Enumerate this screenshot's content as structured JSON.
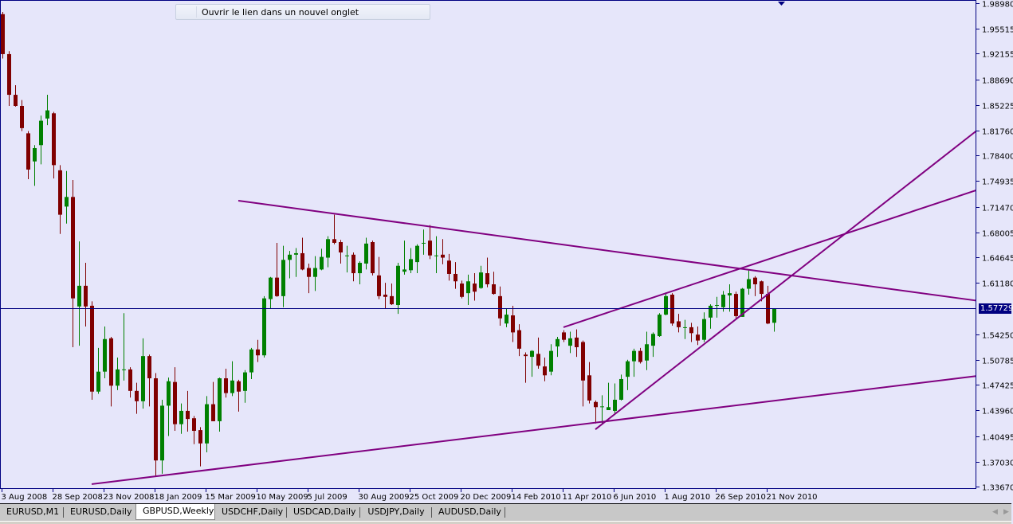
{
  "chart_data": {
    "type": "candlestick",
    "symbol_tab": "GBPUSD,Weekly",
    "ylim": [
      1.3367,
      1.9898
    ],
    "y_ticks": [
      "1.98980",
      "1.95515",
      "1.92155",
      "1.88690",
      "1.85225",
      "1.81760",
      "1.78400",
      "1.74935",
      "1.71470",
      "1.68005",
      "1.64645",
      "1.61180",
      "1.57729",
      "1.54250",
      "1.50785",
      "1.47425",
      "1.43960",
      "1.40495",
      "1.37030",
      "1.33670"
    ],
    "x_ticks": [
      "3 Aug 2008",
      "28 Sep 2008",
      "23 Nov 2008",
      "18 Jan 2009",
      "15 Mar 2009",
      "10 May 2009",
      "5 Jul 2009",
      "30 Aug 2009",
      "25 Oct 2009",
      "20 Dec 2009",
      "14 Feb 2010",
      "11 Apr 2010",
      "6 Jun 2010",
      "1 Aug 2010",
      "26 Sep 2010",
      "21 Nov 2010"
    ],
    "current_price": "1.57729",
    "grid": false,
    "colors": {
      "background": "#E6E6FA",
      "bull": "#008000",
      "bear": "#800000",
      "trendline": "#800080",
      "axis": "#000080",
      "price_line": "#000080"
    },
    "candle_fields": [
      "date",
      "open",
      "high",
      "low",
      "close"
    ],
    "candles": [
      [
        "2008-08-03",
        1.975,
        1.978,
        1.915,
        1.921
      ],
      [
        "2008-08-10",
        1.921,
        1.925,
        1.851,
        1.866
      ],
      [
        "2008-08-17",
        1.866,
        1.879,
        1.85,
        1.851
      ],
      [
        "2008-08-24",
        1.851,
        1.859,
        1.817,
        1.821
      ],
      [
        "2008-08-31",
        1.814,
        1.817,
        1.752,
        1.765
      ],
      [
        "2008-09-07",
        1.776,
        1.798,
        1.743,
        1.794
      ],
      [
        "2008-09-14",
        1.798,
        1.838,
        1.772,
        1.831
      ],
      [
        "2008-09-21",
        1.834,
        1.866,
        1.825,
        1.845
      ],
      [
        "2008-09-28",
        1.841,
        1.843,
        1.753,
        1.771
      ],
      [
        "2008-10-05",
        1.764,
        1.771,
        1.678,
        1.704
      ],
      [
        "2008-10-12",
        1.715,
        1.763,
        1.692,
        1.728
      ],
      [
        "2008-10-19",
        1.728,
        1.751,
        1.525,
        1.591
      ],
      [
        "2008-10-26",
        1.58,
        1.668,
        1.527,
        1.608
      ],
      [
        "2008-11-02",
        1.608,
        1.639,
        1.553,
        1.58
      ],
      [
        "2008-11-09",
        1.581,
        1.587,
        1.454,
        1.465
      ],
      [
        "2008-11-16",
        1.465,
        1.524,
        1.462,
        1.492
      ],
      [
        "2008-11-23",
        1.492,
        1.553,
        1.483,
        1.536
      ],
      [
        "2008-11-30",
        1.537,
        1.539,
        1.445,
        1.473
      ],
      [
        "2008-12-07",
        1.473,
        1.511,
        1.467,
        1.495
      ],
      [
        "2008-12-14",
        1.495,
        1.571,
        1.48,
        1.495
      ],
      [
        "2008-12-21",
        1.495,
        1.498,
        1.457,
        1.466
      ],
      [
        "2008-12-28",
        1.466,
        1.477,
        1.435,
        1.452
      ],
      [
        "2009-01-04",
        1.452,
        1.537,
        1.442,
        1.513
      ],
      [
        "2009-01-11",
        1.513,
        1.515,
        1.445,
        1.483
      ],
      [
        "2009-01-18",
        1.483,
        1.49,
        1.35,
        1.372
      ],
      [
        "2009-01-25",
        1.372,
        1.454,
        1.354,
        1.446
      ],
      [
        "2009-02-01",
        1.446,
        1.484,
        1.405,
        1.479
      ],
      [
        "2009-02-08",
        1.478,
        1.498,
        1.412,
        1.421
      ],
      [
        "2009-02-15",
        1.421,
        1.449,
        1.408,
        1.439
      ],
      [
        "2009-02-22",
        1.439,
        1.466,
        1.411,
        1.428
      ],
      [
        "2009-03-01",
        1.429,
        1.432,
        1.394,
        1.412
      ],
      [
        "2009-03-08",
        1.413,
        1.417,
        1.364,
        1.395
      ],
      [
        "2009-03-15",
        1.395,
        1.459,
        1.383,
        1.448
      ],
      [
        "2009-03-22",
        1.448,
        1.478,
        1.425,
        1.425
      ],
      [
        "2009-03-29",
        1.425,
        1.484,
        1.411,
        1.483
      ],
      [
        "2009-04-05",
        1.483,
        1.496,
        1.457,
        1.463
      ],
      [
        "2009-04-12",
        1.463,
        1.506,
        1.459,
        1.48
      ],
      [
        "2009-04-19",
        1.479,
        1.481,
        1.438,
        1.465
      ],
      [
        "2009-04-26",
        1.466,
        1.494,
        1.45,
        1.491
      ],
      [
        "2009-05-03",
        1.491,
        1.524,
        1.482,
        1.522
      ],
      [
        "2009-05-10",
        1.522,
        1.535,
        1.505,
        1.514
      ],
      [
        "2009-05-17",
        1.514,
        1.594,
        1.511,
        1.591
      ],
      [
        "2009-05-24",
        1.59,
        1.62,
        1.577,
        1.619
      ],
      [
        "2009-05-31",
        1.619,
        1.666,
        1.593,
        1.594
      ],
      [
        "2009-06-07",
        1.594,
        1.662,
        1.579,
        1.643
      ],
      [
        "2009-06-14",
        1.643,
        1.655,
        1.618,
        1.65
      ],
      [
        "2009-06-21",
        1.65,
        1.659,
        1.62,
        1.652
      ],
      [
        "2009-06-28",
        1.652,
        1.673,
        1.629,
        1.63
      ],
      [
        "2009-07-05",
        1.632,
        1.638,
        1.598,
        1.62
      ],
      [
        "2009-07-12",
        1.62,
        1.648,
        1.601,
        1.632
      ],
      [
        "2009-07-19",
        1.63,
        1.658,
        1.629,
        1.647
      ],
      [
        "2009-07-26",
        1.646,
        1.675,
        1.633,
        1.671
      ],
      [
        "2009-08-02",
        1.671,
        1.704,
        1.664,
        1.666
      ],
      [
        "2009-08-09",
        1.667,
        1.67,
        1.638,
        1.653
      ],
      [
        "2009-08-16",
        1.649,
        1.662,
        1.626,
        1.649
      ],
      [
        "2009-08-23",
        1.65,
        1.653,
        1.614,
        1.625
      ],
      [
        "2009-08-30",
        1.625,
        1.641,
        1.61,
        1.639
      ],
      [
        "2009-09-06",
        1.638,
        1.673,
        1.63,
        1.665
      ],
      [
        "2009-09-13",
        1.667,
        1.669,
        1.622,
        1.625
      ],
      [
        "2009-09-20",
        1.622,
        1.647,
        1.59,
        1.594
      ],
      [
        "2009-09-27",
        1.596,
        1.612,
        1.577,
        1.593
      ],
      [
        "2009-10-04",
        1.594,
        1.611,
        1.582,
        1.583
      ],
      [
        "2009-10-11",
        1.582,
        1.639,
        1.57,
        1.635
      ],
      [
        "2009-10-18",
        1.627,
        1.669,
        1.623,
        1.63
      ],
      [
        "2009-10-25",
        1.629,
        1.659,
        1.625,
        1.644
      ],
      [
        "2009-11-01",
        1.64,
        1.664,
        1.625,
        1.662
      ],
      [
        "2009-11-08",
        1.666,
        1.684,
        1.65,
        1.666
      ],
      [
        "2009-11-15",
        1.669,
        1.69,
        1.644,
        1.649
      ],
      [
        "2009-11-22",
        1.649,
        1.675,
        1.625,
        1.649
      ],
      [
        "2009-11-29",
        1.65,
        1.671,
        1.637,
        1.646
      ],
      [
        "2009-12-06",
        1.642,
        1.651,
        1.615,
        1.624
      ],
      [
        "2009-12-13",
        1.624,
        1.64,
        1.604,
        1.614
      ],
      [
        "2009-12-20",
        1.611,
        1.615,
        1.591,
        1.593
      ],
      [
        "2009-12-27",
        1.598,
        1.623,
        1.582,
        1.614
      ],
      [
        "2010-01-03",
        1.611,
        1.625,
        1.588,
        1.6
      ],
      [
        "2010-01-10",
        1.605,
        1.635,
        1.604,
        1.626
      ],
      [
        "2010-01-17",
        1.625,
        1.646,
        1.606,
        1.61
      ],
      [
        "2010-01-24",
        1.61,
        1.627,
        1.596,
        1.597
      ],
      [
        "2010-01-31",
        1.594,
        1.607,
        1.554,
        1.564
      ],
      [
        "2010-02-07",
        1.557,
        1.577,
        1.552,
        1.569
      ],
      [
        "2010-02-14",
        1.568,
        1.581,
        1.532,
        1.545
      ],
      [
        "2010-02-21",
        1.548,
        1.556,
        1.513,
        1.523
      ],
      [
        "2010-02-28",
        1.515,
        1.518,
        1.477,
        1.513
      ],
      [
        "2010-03-07",
        1.512,
        1.521,
        1.485,
        1.52
      ],
      [
        "2010-03-14",
        1.516,
        1.538,
        1.496,
        1.5
      ],
      [
        "2010-03-21",
        1.499,
        1.511,
        1.479,
        1.487
      ],
      [
        "2010-03-28",
        1.492,
        1.529,
        1.487,
        1.52
      ],
      [
        "2010-04-04",
        1.526,
        1.539,
        1.512,
        1.536
      ],
      [
        "2010-04-11",
        1.545,
        1.548,
        1.532,
        1.535
      ],
      [
        "2010-04-18",
        1.527,
        1.546,
        1.517,
        1.537
      ],
      [
        "2010-04-25",
        1.538,
        1.549,
        1.512,
        1.525
      ],
      [
        "2010-05-02",
        1.532,
        1.534,
        1.445,
        1.48
      ],
      [
        "2010-05-09",
        1.487,
        1.505,
        1.449,
        1.453
      ],
      [
        "2010-05-16",
        1.451,
        1.453,
        1.422,
        1.444
      ],
      [
        "2010-05-23",
        1.445,
        1.46,
        1.422,
        1.445
      ],
      [
        "2010-05-30",
        1.44,
        1.477,
        1.44,
        1.444
      ],
      [
        "2010-06-06",
        1.439,
        1.476,
        1.435,
        1.454
      ],
      [
        "2010-06-13",
        1.454,
        1.488,
        1.453,
        1.482
      ],
      [
        "2010-06-20",
        1.485,
        1.508,
        1.467,
        1.506
      ],
      [
        "2010-06-27",
        1.506,
        1.523,
        1.485,
        1.52
      ],
      [
        "2010-07-04",
        1.52,
        1.524,
        1.503,
        1.505
      ],
      [
        "2010-07-11",
        1.507,
        1.546,
        1.494,
        1.529
      ],
      [
        "2010-07-18",
        1.527,
        1.545,
        1.512,
        1.543
      ],
      [
        "2010-07-25",
        1.54,
        1.571,
        1.539,
        1.569
      ],
      [
        "2010-08-01",
        1.569,
        1.599,
        1.568,
        1.594
      ],
      [
        "2010-08-08",
        1.596,
        1.598,
        1.554,
        1.557
      ],
      [
        "2010-08-15",
        1.56,
        1.57,
        1.545,
        1.552
      ],
      [
        "2010-08-22",
        1.552,
        1.562,
        1.536,
        1.552
      ],
      [
        "2010-08-29",
        1.552,
        1.558,
        1.532,
        1.544
      ],
      [
        "2010-09-05",
        1.542,
        1.553,
        1.528,
        1.534
      ],
      [
        "2010-09-12",
        1.535,
        1.572,
        1.532,
        1.563
      ],
      [
        "2010-09-19",
        1.565,
        1.583,
        1.55,
        1.581
      ],
      [
        "2010-09-26",
        1.582,
        1.593,
        1.565,
        1.582
      ],
      [
        "2010-10-03",
        1.579,
        1.601,
        1.573,
        1.596
      ],
      [
        "2010-10-10",
        1.595,
        1.61,
        1.573,
        1.598
      ],
      [
        "2010-10-17",
        1.597,
        1.6,
        1.564,
        1.567
      ],
      [
        "2010-10-24",
        1.566,
        1.605,
        1.566,
        1.604
      ],
      [
        "2010-10-31",
        1.604,
        1.629,
        1.596,
        1.617
      ],
      [
        "2010-11-07",
        1.619,
        1.621,
        1.594,
        1.61
      ],
      [
        "2010-11-14",
        1.614,
        1.615,
        1.587,
        1.597
      ],
      [
        "2010-11-21",
        1.597,
        1.608,
        1.556,
        1.557
      ],
      [
        "2010-11-28",
        1.558,
        1.577,
        1.546,
        1.577
      ]
    ],
    "trendlines": [
      {
        "from": [
          "2009-04-19",
          1.723
        ],
        "to": [
          "2011-07-08",
          1.588
        ]
      },
      {
        "from": [
          "2008-11-09",
          1.34
        ],
        "to": [
          "2011-07-08",
          1.486
        ]
      },
      {
        "from": [
          "2010-04-11",
          1.552
        ],
        "to": [
          "2011-07-08",
          1.737
        ]
      },
      {
        "from": [
          "2010-05-16",
          1.414
        ],
        "to": [
          "2011-07-08",
          1.817
        ]
      }
    ]
  },
  "tooltip": {
    "text": "Ouvrir le lien dans un nouvel onglet"
  },
  "tabs": [
    {
      "label": "EURUSD,M1",
      "active": false
    },
    {
      "label": "EURUSD,Daily",
      "active": false
    },
    {
      "label": "GBPUSD,Weekly",
      "active": true
    },
    {
      "label": "USDCHF,Daily",
      "active": false
    },
    {
      "label": "USDCAD,Daily",
      "active": false
    },
    {
      "label": "USDJPY,Daily",
      "active": false
    },
    {
      "label": "AUDUSD,Daily",
      "active": false
    }
  ],
  "icons": {
    "shift_marker": "triangle-down-icon",
    "scroll_left": "arrow-left-icon",
    "scroll_right": "arrow-right-icon"
  }
}
